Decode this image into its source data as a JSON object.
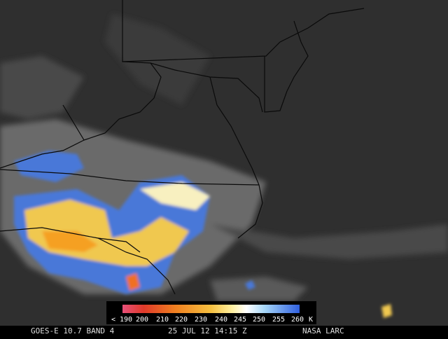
{
  "colorbar": {
    "labels": [
      "< 190",
      "200",
      "210",
      "220",
      "230",
      "240",
      "245",
      "250",
      "255",
      "260"
    ],
    "unit": "K"
  },
  "footer": {
    "satellite": "GOES-E 10.7 BAND 4",
    "timestamp": "25 JUL 12 14:15 Z",
    "credit": "NASA LARC"
  }
}
